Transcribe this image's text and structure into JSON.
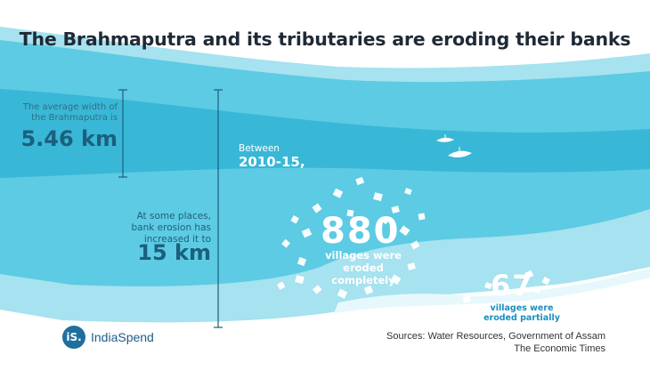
{
  "title": "The Brahmaputra and its tributaries are eroding their banks",
  "average_width": {
    "label_line1": "The average width of",
    "label_line2": "the Brahmaputra is",
    "value": "5.46 km"
  },
  "max_width": {
    "label_line1": "At some places,",
    "label_line2": "bank erosion has",
    "label_line3": "increased it to",
    "value": "15 km"
  },
  "period": {
    "label": "Between",
    "value": "2010-15,"
  },
  "completely_eroded": {
    "number": "880",
    "text_line1": "villages were",
    "text_line2": "eroded",
    "text_line3": "completely"
  },
  "partially_eroded": {
    "number": "67",
    "text_line1": "villages were",
    "text_line2": "eroded partially"
  },
  "brand": {
    "logo": "iS.",
    "name": "IndiaSpend"
  },
  "sources": {
    "line1": "Sources: Water Resources, Government of Assam",
    "line2": "The Economic Times"
  },
  "colors": {
    "water_light": "#a6e2ef",
    "water_mid": "#5ccbe3",
    "water_band": "#39b7d6",
    "title": "#1f2a36",
    "accent": "#1c5f7e"
  },
  "icons": [
    "boat-icon",
    "house-icon"
  ]
}
